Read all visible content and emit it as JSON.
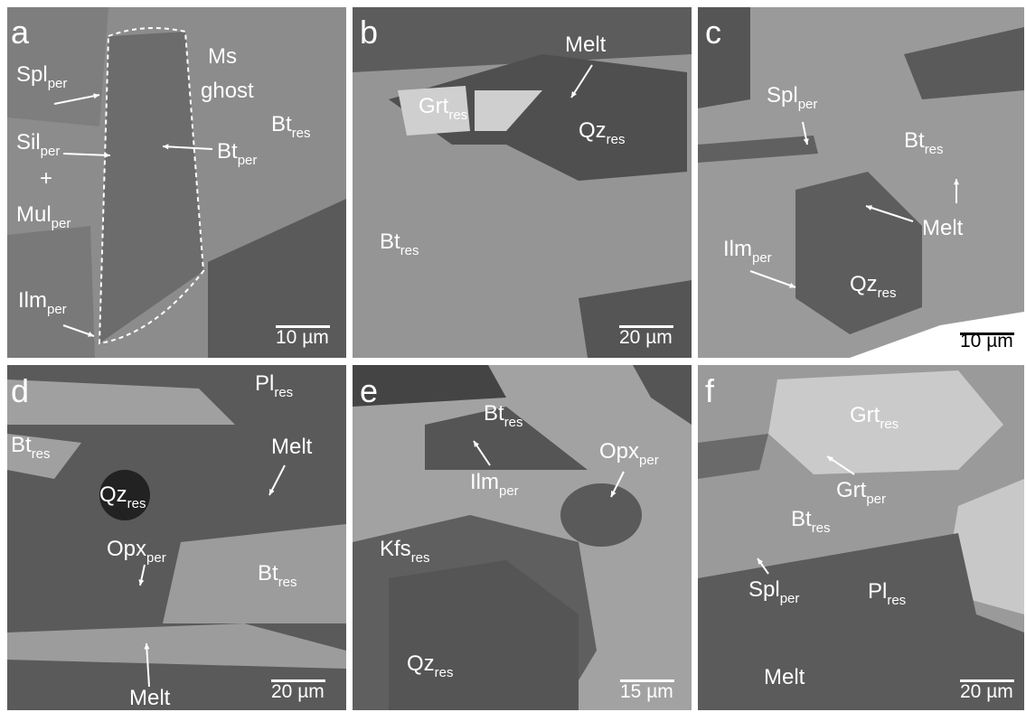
{
  "panels": [
    {
      "letter": "a",
      "scale": "10 µm",
      "labels": [
        {
          "text": "Spl",
          "sub": "per"
        },
        {
          "text": "Ms"
        },
        {
          "text": "ghost"
        },
        {
          "text": "Bt",
          "sub": "res"
        },
        {
          "text": "Sil",
          "sub": "per"
        },
        {
          "text": "+"
        },
        {
          "text": "Mul",
          "sub": "per"
        },
        {
          "text": "Bt",
          "sub": "per"
        },
        {
          "text": "Ilm",
          "sub": "per"
        }
      ]
    },
    {
      "letter": "b",
      "scale": "20 µm",
      "labels": [
        {
          "text": "Melt"
        },
        {
          "text": "Grt",
          "sub": "res"
        },
        {
          "text": "Qz",
          "sub": "res"
        },
        {
          "text": "Bt",
          "sub": "res"
        }
      ]
    },
    {
      "letter": "c",
      "scale": "10 µm",
      "labels": [
        {
          "text": "Spl",
          "sub": "per"
        },
        {
          "text": "Bt",
          "sub": "res"
        },
        {
          "text": "Melt"
        },
        {
          "text": "Ilm",
          "sub": "per"
        },
        {
          "text": "Qz",
          "sub": "res"
        }
      ]
    },
    {
      "letter": "d",
      "scale": "20 µm",
      "labels": [
        {
          "text": "Pl",
          "sub": "res"
        },
        {
          "text": "Bt",
          "sub": "res"
        },
        {
          "text": "Melt"
        },
        {
          "text": "Qz",
          "sub": "res"
        },
        {
          "text": "Opx",
          "sub": "per"
        },
        {
          "text": "Bt",
          "sub": "res"
        },
        {
          "text": "Melt"
        }
      ]
    },
    {
      "letter": "e",
      "scale": "15 µm",
      "labels": [
        {
          "text": "Bt",
          "sub": "res"
        },
        {
          "text": "Opx",
          "sub": "per"
        },
        {
          "text": "Ilm",
          "sub": "per"
        },
        {
          "text": "Kfs",
          "sub": "res"
        },
        {
          "text": "Qz",
          "sub": "res"
        }
      ]
    },
    {
      "letter": "f",
      "scale": "20 µm",
      "labels": [
        {
          "text": "Grt",
          "sub": "res"
        },
        {
          "text": "Grt",
          "sub": "per"
        },
        {
          "text": "Bt",
          "sub": "res"
        },
        {
          "text": "Spl",
          "sub": "per"
        },
        {
          "text": "Pl",
          "sub": "res"
        },
        {
          "text": "Melt"
        }
      ]
    }
  ]
}
